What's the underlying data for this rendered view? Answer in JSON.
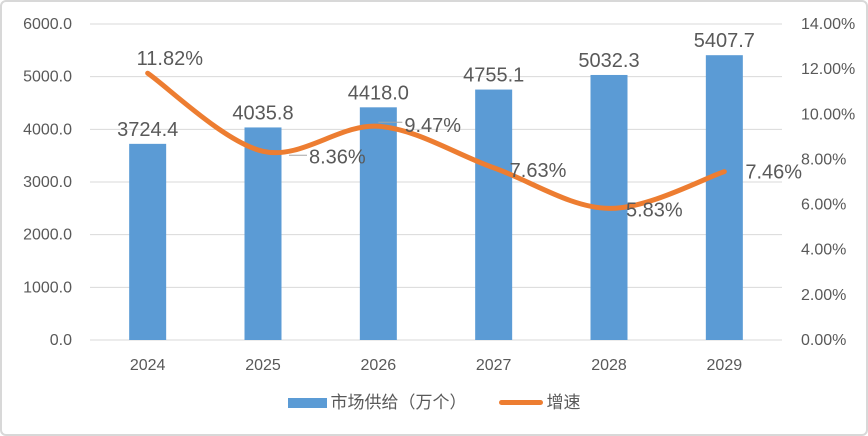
{
  "chart_data": {
    "type": "combo",
    "categories": [
      "2024",
      "2025",
      "2026",
      "2027",
      "2028",
      "2029"
    ],
    "series": [
      {
        "name": "市场供给（万个）",
        "chart_type": "bar",
        "axis": "left",
        "color": "#5B9BD5",
        "values": [
          3724.4,
          4035.8,
          4418.0,
          4755.1,
          5032.3,
          5407.7
        ],
        "labels": [
          "3724.4",
          "4035.8",
          "4418.0",
          "4755.1",
          "5032.3",
          "5407.7"
        ]
      },
      {
        "name": "增速",
        "chart_type": "line",
        "axis": "right",
        "color": "#ED7D31",
        "smooth": true,
        "values": [
          11.82,
          8.36,
          9.47,
          7.63,
          5.83,
          7.46
        ],
        "labels": [
          "11.82%",
          "8.36%",
          "9.47%",
          "7.63%",
          "5.83%",
          "7.46%"
        ]
      }
    ],
    "left_axis": {
      "min": 0,
      "max": 6000,
      "step": 1000,
      "tick_labels": [
        "0.0",
        "1000.0",
        "2000.0",
        "3000.0",
        "4000.0",
        "5000.0",
        "6000.0"
      ]
    },
    "right_axis": {
      "min": 0,
      "max": 14,
      "step": 2,
      "tick_labels": [
        "0.00%",
        "2.00%",
        "4.00%",
        "6.00%",
        "8.00%",
        "10.00%",
        "12.00%",
        "14.00%"
      ]
    },
    "grid": true,
    "legend_position": "bottom",
    "colors": {
      "text": "#595959",
      "gridline": "#D9D9D9",
      "leader": "#A6A6A6",
      "background": "#FFFFFF",
      "border": "#D8D8D8"
    }
  }
}
